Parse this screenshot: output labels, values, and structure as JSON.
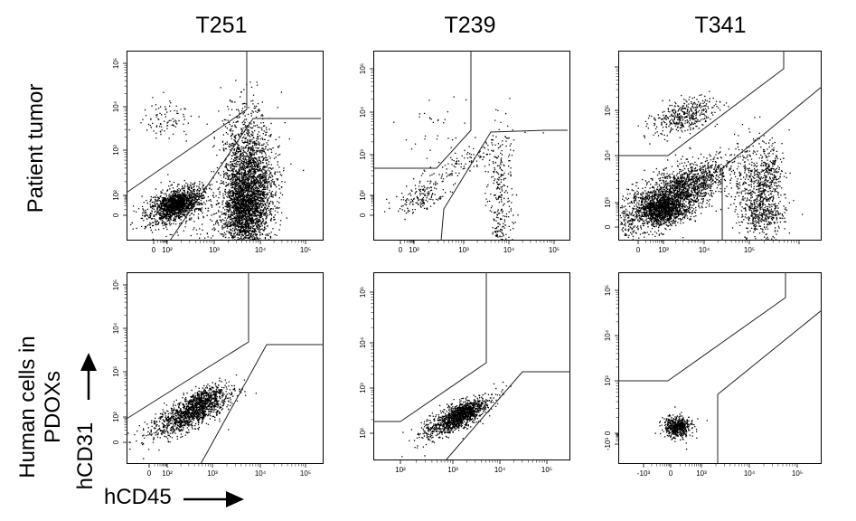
{
  "columns": [
    "T251",
    "T239",
    "T341"
  ],
  "rows": [
    {
      "label_line1": "Patient tumor",
      "label_line2": ""
    },
    {
      "label_line1": "Human cells in",
      "label_line2": "PDOXs"
    }
  ],
  "x_axis_label": "hCD45",
  "y_axis_label": "hCD31",
  "chart_data": [
    {
      "type": "scatter",
      "column": "T251",
      "row": "Patient tumor",
      "x_ticks": [
        "0",
        "10²",
        "10³",
        "10⁴",
        "10⁵"
      ],
      "y_ticks": [
        "0",
        "10²",
        "10³",
        "10⁴",
        "10⁵"
      ]
    },
    {
      "type": "scatter",
      "column": "T239",
      "row": "Patient tumor",
      "x_ticks": [
        "0",
        "10²",
        "10³",
        "10⁴",
        "10⁵"
      ],
      "y_ticks": [
        "0",
        "10²",
        "10³",
        "10⁴",
        "10⁵"
      ]
    },
    {
      "type": "scatter",
      "column": "T341",
      "row": "Patient tumor",
      "x_ticks": [
        "0",
        "10³",
        "10⁴",
        "10⁵"
      ],
      "y_ticks": [
        "0",
        "10³",
        "10⁴",
        "10⁵"
      ]
    },
    {
      "type": "scatter",
      "column": "T251",
      "row": "Human cells in PDOXs",
      "x_ticks": [
        "0",
        "10²",
        "10³",
        "10⁴",
        "10⁵"
      ],
      "y_ticks": [
        "0",
        "10²",
        "10³",
        "10⁴",
        "10⁵"
      ]
    },
    {
      "type": "scatter",
      "column": "T239",
      "row": "Human cells in PDOXs",
      "x_ticks": [
        "10²",
        "10³",
        "10⁴",
        "10⁵"
      ],
      "y_ticks": [
        "10²",
        "10³",
        "10⁴",
        "10⁵"
      ]
    },
    {
      "type": "scatter",
      "column": "T341",
      "row": "Human cells in PDOXs",
      "x_ticks": [
        "-10³",
        "0",
        "10³",
        "10⁴",
        "10⁵"
      ],
      "y_ticks": [
        "-10³",
        "0",
        "10³",
        "10⁴",
        "10⁵"
      ]
    }
  ]
}
